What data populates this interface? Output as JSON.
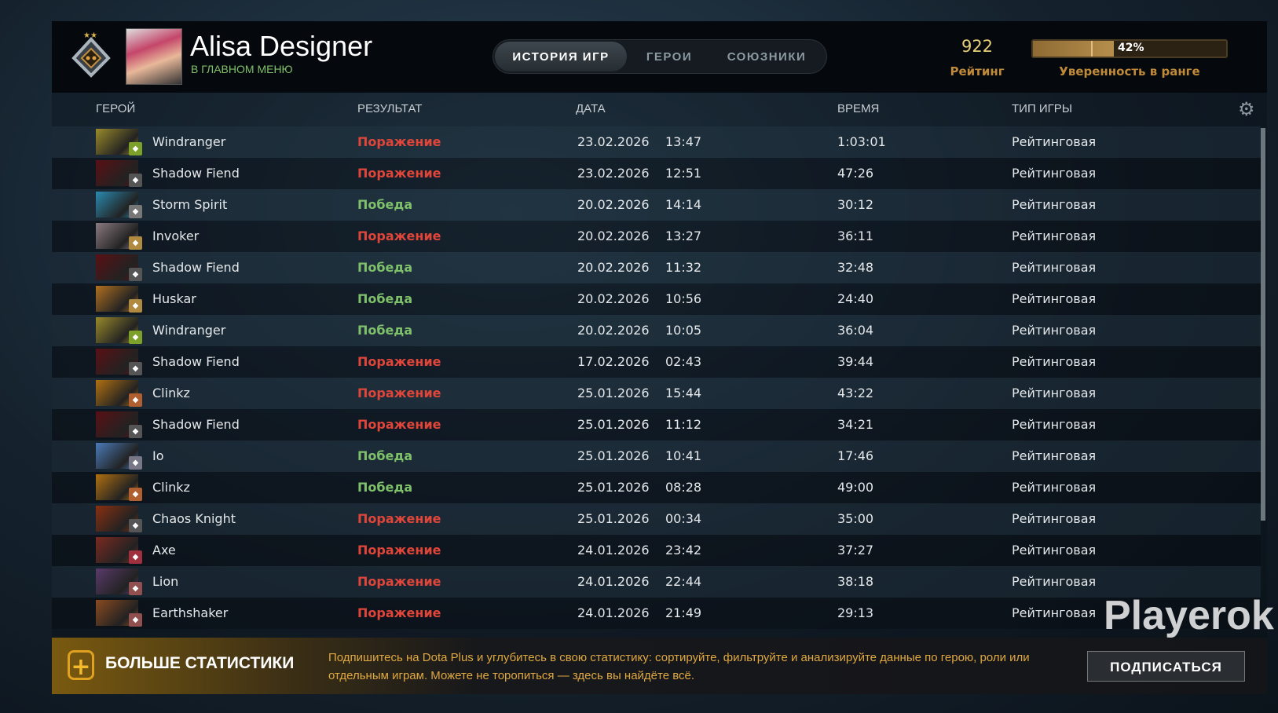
{
  "profile": {
    "name": "Alisa Designer",
    "status": "В ГЛАВНОМ МЕНЮ"
  },
  "tabs": [
    {
      "label": "ИСТОРИЯ ИГР",
      "active": true
    },
    {
      "label": "ГЕРОИ"
    },
    {
      "label": "СОЮЗНИКИ"
    }
  ],
  "rating": {
    "value": "922",
    "label": "Рейтинг"
  },
  "confidence": {
    "percent": 42,
    "text": "42%",
    "label": "Уверенность в ранге"
  },
  "columns": {
    "hero": "ГЕРОЙ",
    "result": "РЕЗУЛЬТАТ",
    "date": "ДАТА",
    "duration": "ВРЕМЯ",
    "type": "ТИП ИГРЫ"
  },
  "colors": {
    "loss": "#e0453a",
    "win": "#7fc06a",
    "accent": "#e0a840"
  },
  "matches": [
    {
      "hero": "Windranger",
      "result": "Поражение",
      "win": false,
      "date": "23.02.2026",
      "time": "13:47",
      "duration": "1:03:01",
      "type": "Рейтинговая",
      "color": "#9a8a2a",
      "badge": "#7da02a"
    },
    {
      "hero": "Shadow Fiend",
      "result": "Поражение",
      "win": false,
      "date": "23.02.2026",
      "time": "12:51",
      "duration": "47:26",
      "type": "Рейтинговая",
      "color": "#5a1014",
      "badge": "#555"
    },
    {
      "hero": "Storm Spirit",
      "result": "Победа",
      "win": true,
      "date": "20.02.2026",
      "time": "14:14",
      "duration": "30:12",
      "type": "Рейтинговая",
      "color": "#2a8ab0",
      "badge": "#777"
    },
    {
      "hero": "Invoker",
      "result": "Поражение",
      "win": false,
      "date": "20.02.2026",
      "time": "13:27",
      "duration": "36:11",
      "type": "Рейтинговая",
      "color": "#8a7a80",
      "badge": "#b08a40"
    },
    {
      "hero": "Shadow Fiend",
      "result": "Победа",
      "win": true,
      "date": "20.02.2026",
      "time": "11:32",
      "duration": "32:48",
      "type": "Рейтинговая",
      "color": "#5a1014",
      "badge": "#555"
    },
    {
      "hero": "Huskar",
      "result": "Победа",
      "win": true,
      "date": "20.02.2026",
      "time": "10:56",
      "duration": "24:40",
      "type": "Рейтинговая",
      "color": "#b07020",
      "badge": "#b08a40"
    },
    {
      "hero": "Windranger",
      "result": "Победа",
      "win": true,
      "date": "20.02.2026",
      "time": "10:05",
      "duration": "36:04",
      "type": "Рейтинговая",
      "color": "#9a8a2a",
      "badge": "#7da02a"
    },
    {
      "hero": "Shadow Fiend",
      "result": "Поражение",
      "win": false,
      "date": "17.02.2026",
      "time": "02:43",
      "duration": "39:44",
      "type": "Рейтинговая",
      "color": "#5a1014",
      "badge": "#555"
    },
    {
      "hero": "Clinkz",
      "result": "Поражение",
      "win": false,
      "date": "25.01.2026",
      "time": "15:44",
      "duration": "43:22",
      "type": "Рейтинговая",
      "color": "#b07010",
      "badge": "#b06030"
    },
    {
      "hero": "Shadow Fiend",
      "result": "Поражение",
      "win": false,
      "date": "25.01.2026",
      "time": "11:12",
      "duration": "34:21",
      "type": "Рейтинговая",
      "color": "#5a1014",
      "badge": "#555"
    },
    {
      "hero": "Io",
      "result": "Победа",
      "win": true,
      "date": "25.01.2026",
      "time": "10:41",
      "duration": "17:46",
      "type": "Рейтинговая",
      "color": "#4a7ab8",
      "badge": "#778"
    },
    {
      "hero": "Clinkz",
      "result": "Победа",
      "win": true,
      "date": "25.01.2026",
      "time": "08:28",
      "duration": "49:00",
      "type": "Рейтинговая",
      "color": "#b07010",
      "badge": "#b06030"
    },
    {
      "hero": "Chaos Knight",
      "result": "Поражение",
      "win": false,
      "date": "25.01.2026",
      "time": "00:34",
      "duration": "35:00",
      "type": "Рейтинговая",
      "color": "#8a3010",
      "badge": "#555"
    },
    {
      "hero": "Axe",
      "result": "Поражение",
      "win": false,
      "date": "24.01.2026",
      "time": "23:42",
      "duration": "37:27",
      "type": "Рейтинговая",
      "color": "#7a2a20",
      "badge": "#a03040"
    },
    {
      "hero": "Lion",
      "result": "Поражение",
      "win": false,
      "date": "24.01.2026",
      "time": "22:44",
      "duration": "38:18",
      "type": "Рейтинговая",
      "color": "#5a3a6a",
      "badge": "#905050"
    },
    {
      "hero": "Earthshaker",
      "result": "Поражение",
      "win": false,
      "date": "24.01.2026",
      "time": "21:49",
      "duration": "29:13",
      "type": "Рейтинговая",
      "color": "#8a4a20",
      "badge": "#905050"
    }
  ],
  "banner": {
    "title": "БОЛЬШЕ СТАТИСТИКИ",
    "text": "Подпишитесь на Dota Plus и углубитесь в свою статистику: сортируйте, фильтруйте и анализируйте данные по герою, роли или отдельным играм. Можете не торопиться — здесь вы найдёте всё.",
    "button": "ПОДПИСАТЬСЯ"
  },
  "watermark": "Playerok"
}
